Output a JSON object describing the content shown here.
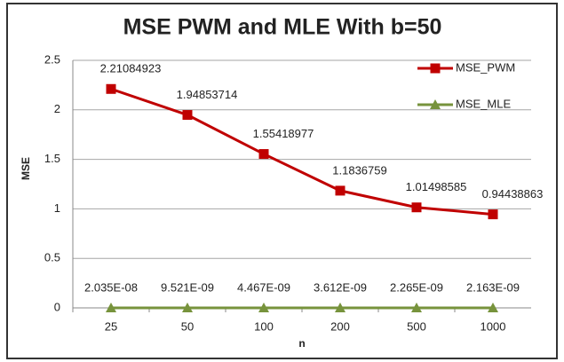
{
  "chart_data": {
    "type": "line",
    "title": "MSE PWM and MLE With b=50",
    "x_label": "n",
    "y_label": "MSE",
    "categories": [
      "25",
      "50",
      "100",
      "200",
      "500",
      "1000"
    ],
    "series": [
      {
        "name": "MSE_PWM",
        "color": "#c00000",
        "marker": "square",
        "values": [
          2.21084923,
          1.94853714,
          1.55418977,
          1.1836759,
          1.01498585,
          0.94438863
        ]
      },
      {
        "name": "MSE_MLE",
        "color": "#77933c",
        "marker": "triangle",
        "values": [
          2.035e-08,
          9.521e-09,
          4.467e-09,
          3.612e-09,
          2.265e-09,
          2.163e-09
        ],
        "value_labels": [
          "2.035E-08",
          "9.521E-09",
          "4.467E-09",
          "3.612E-09",
          "2.265E-09",
          "2.163E-09"
        ]
      }
    ],
    "ylim": [
      0,
      2.5
    ],
    "yticks": [
      0,
      0.5,
      1,
      1.5,
      2,
      2.5
    ],
    "grid": true,
    "legend": "top-right"
  }
}
